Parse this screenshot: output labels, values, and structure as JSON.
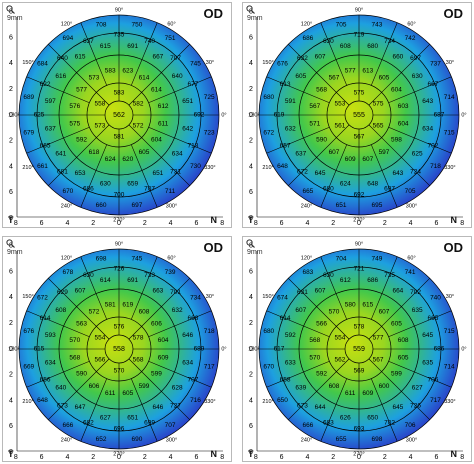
{
  "common": {
    "eye_label": "OD",
    "scale_label": "9mm",
    "temporal_label": "T",
    "nasal_label": "N",
    "axis_ticks": [
      "8",
      "6",
      "4",
      "2",
      "0",
      "2",
      "4",
      "6",
      "8"
    ],
    "angle_labels": [
      "90°",
      "60°",
      "30°",
      "0°",
      "330°",
      "300°",
      "270°",
      "240°",
      "210°",
      "180°",
      "150°",
      "120°"
    ]
  },
  "colors": {
    "center": "#c8e010",
    "mid": "#43c84a",
    "outer": "#1da0e0",
    "edge": "#2a3cc8",
    "grid": "#000000"
  },
  "panels": [
    {
      "center": "562",
      "ring1": [
        "583",
        "582",
        "572",
        "581",
        "573",
        "558"
      ],
      "ring2": [
        "623",
        "614",
        "614",
        "612",
        "611",
        "604",
        "605",
        "620",
        "624",
        "618",
        "592",
        "575",
        "576",
        "577",
        "573",
        "583"
      ],
      "ring3": [
        "691",
        "667",
        "640",
        "651",
        "642",
        "634",
        "651",
        "659",
        "630",
        "653",
        "641",
        "637",
        "597",
        "616",
        "615",
        "615"
      ],
      "ring4": [
        "735",
        "740",
        "707",
        "677",
        "692",
        "713",
        "731",
        "707",
        "700",
        "686",
        "681",
        "665",
        "625",
        "622",
        "640",
        "637"
      ],
      "ring5": [
        "750",
        "751",
        "745",
        "725",
        "723",
        "730",
        "711",
        "697",
        "660",
        "670",
        "661",
        "679",
        "689",
        "684",
        "694",
        "708"
      ]
    },
    {
      "center": "555",
      "ring1": [
        "575",
        "575",
        "565",
        "567",
        "561",
        "553"
      ],
      "ring2": [
        "613",
        "605",
        "604",
        "603",
        "604",
        "598",
        "597",
        "607",
        "609",
        "607",
        "590",
        "571",
        "567",
        "568",
        "567",
        "577"
      ],
      "ring3": [
        "680",
        "660",
        "630",
        "643",
        "634",
        "625",
        "643",
        "648",
        "624",
        "645",
        "637",
        "632",
        "591",
        "605",
        "607",
        "608"
      ],
      "ring4": [
        "719",
        "734",
        "697",
        "667",
        "687",
        "702",
        "724",
        "697",
        "692",
        "680",
        "672",
        "657",
        "619",
        "613",
        "632",
        "630"
      ],
      "ring5": [
        "743",
        "742",
        "737",
        "714",
        "715",
        "718",
        "705",
        "695",
        "651",
        "665",
        "648",
        "672",
        "680",
        "676",
        "686",
        "705"
      ]
    },
    {
      "center": "558",
      "ring1": [
        "576",
        "578",
        "568",
        "570",
        "566",
        "554"
      ],
      "ring2": [
        "619",
        "608",
        "606",
        "604",
        "609",
        "599",
        "599",
        "605",
        "611",
        "606",
        "590",
        "568",
        "570",
        "563",
        "572",
        "581"
      ],
      "ring3": [
        "691",
        "663",
        "632",
        "646",
        "634",
        "628",
        "646",
        "651",
        "627",
        "647",
        "640",
        "634",
        "593",
        "608",
        "607",
        "614"
      ],
      "ring4": [
        "726",
        "733",
        "701",
        "668",
        "689",
        "707",
        "727",
        "699",
        "696",
        "682",
        "673",
        "656",
        "615",
        "614",
        "629",
        "630"
      ],
      "ring5": [
        "745",
        "739",
        "734",
        "718",
        "717",
        "716",
        "707",
        "690",
        "652",
        "666",
        "648",
        "669",
        "676",
        "672",
        "678",
        "698"
      ]
    },
    {
      "center": "559",
      "ring1": [
        "578",
        "577",
        "567",
        "569",
        "562",
        "554"
      ],
      "ring2": [
        "615",
        "607",
        "605",
        "608",
        "605",
        "599",
        "600",
        "609",
        "611",
        "608",
        "592",
        "570",
        "568",
        "566",
        "570",
        "580"
      ],
      "ring3": [
        "686",
        "664",
        "635",
        "645",
        "635",
        "627",
        "645",
        "650",
        "626",
        "644",
        "639",
        "633",
        "592",
        "607",
        "607",
        "612"
      ],
      "ring4": [
        "721",
        "735",
        "702",
        "665",
        "686",
        "706",
        "726",
        "702",
        "693",
        "683",
        "673",
        "658",
        "617",
        "614",
        "631",
        "630"
      ],
      "ring5": [
        "749",
        "741",
        "740",
        "715",
        "714",
        "717",
        "706",
        "698",
        "655",
        "666",
        "650",
        "670",
        "680",
        "674",
        "683",
        "704"
      ]
    }
  ]
}
